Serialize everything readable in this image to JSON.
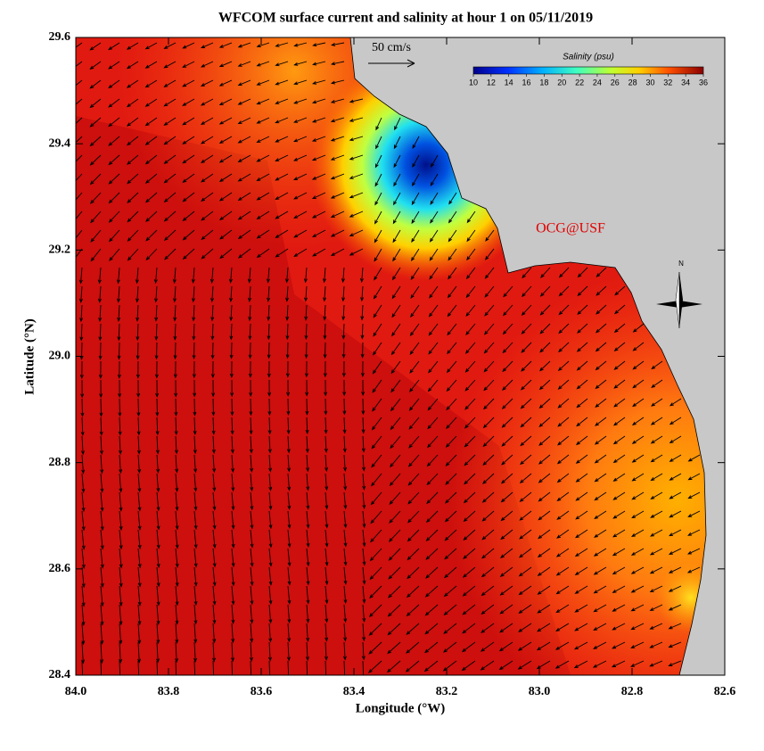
{
  "title": "WFCOM surface current and salinity at hour 1 on 05/11/2019",
  "x_axis": {
    "label": "Longitude (°W)",
    "lim": [
      84.0,
      82.6
    ],
    "ticks": [
      {
        "value": 84.0,
        "label": "84.0"
      },
      {
        "value": 83.8,
        "label": "83.8"
      },
      {
        "value": 83.6,
        "label": "83.6"
      },
      {
        "value": 83.4,
        "label": "83.4"
      },
      {
        "value": 83.2,
        "label": "83.2"
      },
      {
        "value": 83.0,
        "label": "83.0"
      },
      {
        "value": 82.8,
        "label": "82.8"
      },
      {
        "value": 82.6,
        "label": "82.6"
      }
    ]
  },
  "y_axis": {
    "label": "Latitude (°N)",
    "lim": [
      28.4,
      29.6
    ],
    "ticks": [
      28.4,
      28.6,
      28.8,
      {
        "value": 29.0,
        "label": "29.0"
      },
      29.2,
      29.4,
      29.6
    ]
  },
  "colorbar": {
    "label": "Salinity (psu)",
    "lim": [
      10,
      36
    ],
    "ticks": [
      10,
      12,
      14,
      16,
      18,
      20,
      22,
      24,
      26,
      28,
      30,
      32,
      34,
      36
    ]
  },
  "scale_label": "50 cm/s",
  "credit": "OCG@USF",
  "compass_label": "N"
}
